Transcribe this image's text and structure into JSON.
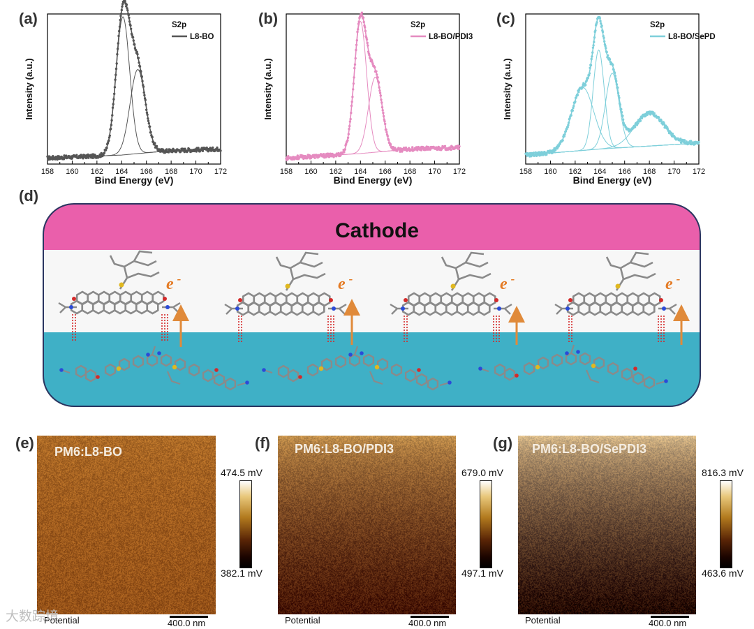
{
  "panels": {
    "a": "(a)",
    "b": "(b)",
    "c": "(c)",
    "d": "(d)",
    "e": "(e)",
    "f": "(f)",
    "g": "(g)"
  },
  "chart_data": [
    {
      "type": "line",
      "panel": "(a)",
      "title": "S2p",
      "legend": "L8-BO",
      "color": "#555555",
      "xlabel": "Bind Energy (eV)",
      "ylabel": "Intensity (a.u.)",
      "xlim": [
        158,
        172
      ],
      "xticks": [
        158,
        160,
        162,
        164,
        166,
        168,
        170,
        172
      ],
      "ylim": [
        0,
        1
      ],
      "background": [
        [
          158,
          0.04
        ],
        [
          164,
          0.06
        ],
        [
          168,
          0.09
        ],
        [
          172,
          0.1
        ]
      ],
      "peaks": [
        {
          "center": 164.1,
          "height": 0.92,
          "width": 0.55
        },
        {
          "center": 165.3,
          "height": 0.56,
          "width": 0.62
        }
      ]
    },
    {
      "type": "line",
      "panel": "(b)",
      "title": "S2p",
      "legend": "L8-BO/PDI3",
      "color": "#e58bc0",
      "xlabel": "Bind Energy (eV)",
      "ylabel": "Intensity (a.u.)",
      "xlim": [
        158,
        172
      ],
      "xticks": [
        158,
        160,
        162,
        164,
        166,
        168,
        170,
        172
      ],
      "ylim": [
        0,
        1
      ],
      "background": [
        [
          158,
          0.04
        ],
        [
          164,
          0.07
        ],
        [
          168,
          0.1
        ],
        [
          172,
          0.11
        ]
      ],
      "peaks": [
        {
          "center": 164.0,
          "height": 0.88,
          "width": 0.5
        },
        {
          "center": 165.2,
          "height": 0.5,
          "width": 0.55
        }
      ]
    },
    {
      "type": "line",
      "panel": "(c)",
      "title": "S2p",
      "legend": "L8-BO/SePDI3",
      "color": "#7ecfda",
      "xlabel": "Bind Energy (eV)",
      "ylabel": "Intensity (a.u.)",
      "xlim": [
        158,
        172
      ],
      "xticks": [
        158,
        160,
        162,
        164,
        166,
        168,
        170,
        172
      ],
      "ylim": [
        0,
        1
      ],
      "background": [
        [
          158,
          0.06
        ],
        [
          164,
          0.1
        ],
        [
          168,
          0.12
        ],
        [
          172,
          0.14
        ]
      ],
      "peaks": [
        {
          "center": 162.6,
          "height": 0.42,
          "width": 0.9
        },
        {
          "center": 163.9,
          "height": 0.66,
          "width": 0.45
        },
        {
          "center": 165.0,
          "height": 0.5,
          "width": 0.55
        },
        {
          "center": 168.0,
          "height": 0.22,
          "width": 1.2
        }
      ]
    }
  ],
  "diagram": {
    "cathode_label": "Cathode",
    "electron_label": "e",
    "electron_charge": "-",
    "electron_count": 4
  },
  "afm": [
    {
      "title": "PM6:L8-BO",
      "cbar_max": "474.5 mV",
      "cbar_min": "382.1 mV",
      "mode": "Potential",
      "scale": "400.0 nm"
    },
    {
      "title": "PM6:L8-BO/PDI3",
      "cbar_max": "679.0 mV",
      "cbar_min": "497.1 mV",
      "mode": "Potential",
      "scale": "400.0 nm"
    },
    {
      "title": "PM6:L8-BO/SePDI3",
      "cbar_max": "816.3 mV",
      "cbar_min": "463.6 mV",
      "mode": "Potential",
      "scale": "400.0 nm"
    }
  ],
  "watermark": "大数踪境"
}
